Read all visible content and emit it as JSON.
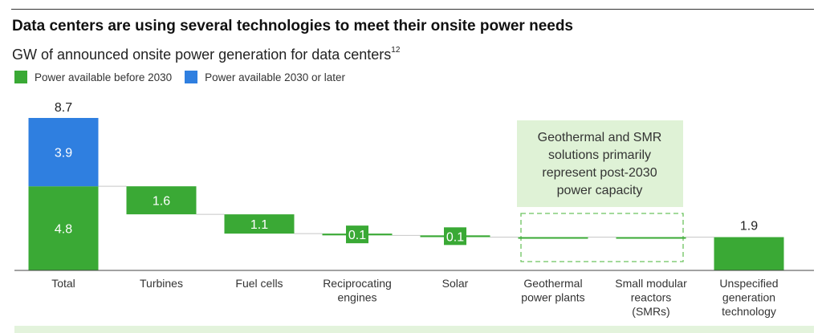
{
  "header": {
    "title": "Data centers are using several technologies to meet their onsite power needs",
    "subtitle": "GW of announced onsite power generation for data centers",
    "subtitle_sup": "12"
  },
  "legend": [
    {
      "label": "Power available before 2030",
      "color": "#3aa935"
    },
    {
      "label": "Power available 2030 or later",
      "color": "#2f7fe0"
    }
  ],
  "annotation": {
    "text_lines": [
      "Geothermal and SMR",
      "solutions primarily",
      "represent post-2030",
      "power capacity"
    ],
    "bg_color": "#dff2d6",
    "dashed_color": "#6cc45f"
  },
  "chart_data": {
    "type": "waterfall",
    "units": "GW",
    "categories": [
      [
        "Total"
      ],
      [
        "Turbines"
      ],
      [
        "Fuel cells"
      ],
      [
        "Reciprocating",
        "engines"
      ],
      [
        "Solar"
      ],
      [
        "Geothermal",
        "power plants"
      ],
      [
        "Small modular",
        "reactors",
        "(SMRs)"
      ],
      [
        "Unspecified",
        "generation",
        "technology"
      ]
    ],
    "total": {
      "before_2030": 4.8,
      "later": 3.9,
      "sum": 8.7,
      "before_2030_label": "4.8",
      "later_label": "3.9",
      "sum_label": "8.7"
    },
    "components": [
      {
        "value": 1.6,
        "label": "1.6"
      },
      {
        "value": 1.1,
        "label": "1.1"
      },
      {
        "value": 0.1,
        "label": "0.1"
      },
      {
        "value": 0.1,
        "label": "0.1"
      },
      {
        "value": 0.0,
        "label": ""
      },
      {
        "value": 0.0,
        "label": ""
      },
      {
        "value": 1.9,
        "label": "1.9"
      }
    ],
    "colors": {
      "before_2030": "#3aa935",
      "later": "#2f7fe0"
    }
  }
}
